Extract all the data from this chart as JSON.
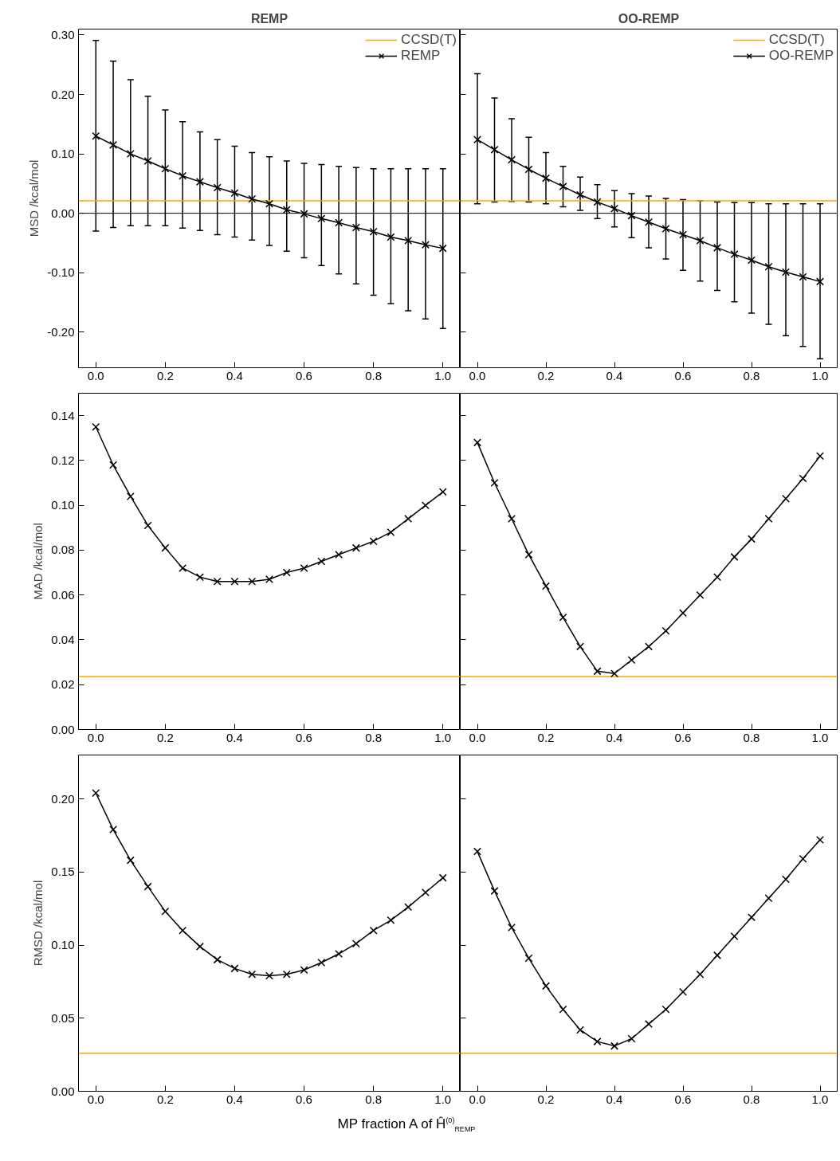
{
  "chart_data": [
    {
      "type": "line",
      "title": "REMP",
      "ylabel": "MSD /kcal/mol",
      "marker": "cross",
      "legend": "top right",
      "xlim": [
        -0.05,
        1.05
      ],
      "ylim": [
        -0.26,
        0.31
      ],
      "xticks": [
        {
          "value": 0,
          "label": "0.0"
        },
        {
          "value": 0.2,
          "label": "0.2"
        },
        {
          "value": 0.4,
          "label": "0.4"
        },
        {
          "value": 0.6,
          "label": "0.6"
        },
        {
          "value": 0.8,
          "label": "0.8"
        },
        {
          "value": 1,
          "label": "1.0"
        }
      ],
      "yticks": [
        {
          "value": -0.2,
          "label": "-0.20"
        },
        {
          "value": -0.1,
          "label": "-0.10"
        },
        {
          "value": 0,
          "label": "0.00"
        },
        {
          "value": 0.1,
          "label": "0.10"
        },
        {
          "value": 0.2,
          "label": "0.20"
        },
        {
          "value": 0.3,
          "label": "0.30"
        }
      ],
      "ref_lines": [
        {
          "axis": "y",
          "value": 0,
          "label": null,
          "color": "#000000"
        }
      ],
      "series": [
        {
          "name": "CCSD(T)",
          "color": "#ffa500",
          "marker": "none",
          "x": [
            -0.05,
            1.05
          ],
          "values": [
            0.021,
            0.021
          ]
        },
        {
          "name": "REMP",
          "color": "#000000",
          "x": [
            0,
            0.05,
            0.1,
            0.15,
            0.2,
            0.25,
            0.3,
            0.35,
            0.4,
            0.45,
            0.5,
            0.55,
            0.6,
            0.65,
            0.7,
            0.75,
            0.8,
            0.85,
            0.9,
            0.95,
            1.0
          ],
          "values": [
            0.13,
            0.115,
            0.1,
            0.088,
            0.075,
            0.063,
            0.053,
            0.043,
            0.034,
            0.024,
            0.016,
            0.006,
            -0.001,
            -0.009,
            -0.016,
            -0.024,
            -0.031,
            -0.04,
            -0.046,
            -0.053,
            -0.059
          ],
          "errors": [
            [
              -0.03,
              0.291
            ],
            [
              -0.024,
              0.256
            ],
            [
              -0.021,
              0.225
            ],
            [
              -0.021,
              0.197
            ],
            [
              -0.021,
              0.174
            ],
            [
              -0.025,
              0.154
            ],
            [
              -0.029,
              0.137
            ],
            [
              -0.036,
              0.124
            ],
            [
              -0.04,
              0.113
            ],
            [
              -0.045,
              0.102
            ],
            [
              -0.054,
              0.095
            ],
            [
              -0.064,
              0.088
            ],
            [
              -0.075,
              0.084
            ],
            [
              -0.088,
              0.082
            ],
            [
              -0.102,
              0.079
            ],
            [
              -0.119,
              0.077
            ],
            [
              -0.138,
              0.075
            ],
            [
              -0.152,
              0.075
            ],
            [
              -0.164,
              0.075
            ],
            [
              -0.178,
              0.075
            ],
            [
              -0.194,
              0.075
            ]
          ]
        }
      ]
    },
    {
      "type": "line",
      "title": "OO-REMP",
      "marker": "cross",
      "legend": "top right",
      "tick_labels": "x",
      "xlim": [
        -0.05,
        1.05
      ],
      "ylim": [
        -0.26,
        0.31
      ],
      "xticks": [
        {
          "value": 0,
          "label": "0.0"
        },
        {
          "value": 0.2,
          "label": "0.2"
        },
        {
          "value": 0.4,
          "label": "0.4"
        },
        {
          "value": 0.6,
          "label": "0.6"
        },
        {
          "value": 0.8,
          "label": "0.8"
        },
        {
          "value": 1,
          "label": "1.0"
        }
      ],
      "yticks": [
        {
          "value": -0.2,
          "label": null
        },
        {
          "value": -0.1,
          "label": null
        },
        {
          "value": 0,
          "label": null
        },
        {
          "value": 0.1,
          "label": null
        },
        {
          "value": 0.2,
          "label": null
        },
        {
          "value": 0.3,
          "label": null
        }
      ],
      "ref_lines": [
        {
          "axis": "y",
          "value": 0,
          "label": null,
          "color": "#000000"
        }
      ],
      "series": [
        {
          "name": "CCSD(T)",
          "color": "#ffa500",
          "marker": "none",
          "x": [
            -0.05,
            1.05
          ],
          "values": [
            0.021,
            0.021
          ]
        },
        {
          "name": "OO-REMP",
          "color": "#000000",
          "x": [
            0,
            0.05,
            0.1,
            0.15,
            0.2,
            0.25,
            0.3,
            0.35,
            0.4,
            0.45,
            0.5,
            0.55,
            0.6,
            0.65,
            0.7,
            0.75,
            0.8,
            0.85,
            0.9,
            0.95,
            1.0
          ],
          "values": [
            0.124,
            0.107,
            0.09,
            0.074,
            0.059,
            0.045,
            0.031,
            0.019,
            0.008,
            -0.004,
            -0.015,
            -0.026,
            -0.036,
            -0.046,
            -0.058,
            -0.069,
            -0.079,
            -0.09,
            -0.099,
            -0.107,
            -0.115
          ],
          "errors": [
            [
              0.016,
              0.235
            ],
            [
              0.019,
              0.194
            ],
            [
              0.02,
              0.159
            ],
            [
              0.019,
              0.128
            ],
            [
              0.016,
              0.102
            ],
            [
              0.011,
              0.079
            ],
            [
              0.005,
              0.061
            ],
            [
              -0.009,
              0.048
            ],
            [
              -0.023,
              0.038
            ],
            [
              -0.041,
              0.033
            ],
            [
              -0.058,
              0.029
            ],
            [
              -0.077,
              0.025
            ],
            [
              -0.096,
              0.023
            ],
            [
              -0.114,
              0.021
            ],
            [
              -0.13,
              0.019
            ],
            [
              -0.149,
              0.018
            ],
            [
              -0.168,
              0.018
            ],
            [
              -0.187,
              0.016
            ],
            [
              -0.206,
              0.016
            ],
            [
              -0.224,
              0.016
            ],
            [
              -0.245,
              0.016
            ]
          ]
        }
      ]
    },
    {
      "type": "line",
      "ylabel": "MAD /kcal/mol",
      "marker": "cross",
      "xlim": [
        -0.05,
        1.05
      ],
      "ylim": [
        0,
        0.15
      ],
      "xticks": [
        {
          "value": 0,
          "label": "0.0"
        },
        {
          "value": 0.2,
          "label": "0.2"
        },
        {
          "value": 0.4,
          "label": "0.4"
        },
        {
          "value": 0.6,
          "label": "0.6"
        },
        {
          "value": 0.8,
          "label": "0.8"
        },
        {
          "value": 1,
          "label": "1.0"
        }
      ],
      "yticks": [
        {
          "value": 0,
          "label": "0.00"
        },
        {
          "value": 0.02,
          "label": "0.02"
        },
        {
          "value": 0.04,
          "label": "0.04"
        },
        {
          "value": 0.06,
          "label": "0.06"
        },
        {
          "value": 0.08,
          "label": "0.08"
        },
        {
          "value": 0.1,
          "label": "0.10"
        },
        {
          "value": 0.12,
          "label": "0.12"
        },
        {
          "value": 0.14,
          "label": "0.14"
        }
      ],
      "series": [
        {
          "color": "#ffa500",
          "marker": "none",
          "x": [
            -0.05,
            1.05
          ],
          "values": [
            0.0236,
            0.0236
          ]
        },
        {
          "color": "#000000",
          "x": [
            0,
            0.05,
            0.1,
            0.15,
            0.2,
            0.25,
            0.3,
            0.35,
            0.4,
            0.45,
            0.5,
            0.55,
            0.6,
            0.65,
            0.7,
            0.75,
            0.8,
            0.85,
            0.9,
            0.95,
            1.0
          ],
          "values": [
            0.135,
            0.118,
            0.104,
            0.091,
            0.081,
            0.072,
            0.068,
            0.066,
            0.066,
            0.066,
            0.067,
            0.07,
            0.072,
            0.075,
            0.078,
            0.081,
            0.084,
            0.088,
            0.094,
            0.1,
            0.106
          ]
        }
      ]
    },
    {
      "type": "line",
      "marker": "cross",
      "tick_labels": "x",
      "xlim": [
        -0.05,
        1.05
      ],
      "ylim": [
        0,
        0.15
      ],
      "xticks": [
        {
          "value": 0,
          "label": "0.0"
        },
        {
          "value": 0.2,
          "label": "0.2"
        },
        {
          "value": 0.4,
          "label": "0.4"
        },
        {
          "value": 0.6,
          "label": "0.6"
        },
        {
          "value": 0.8,
          "label": "0.8"
        },
        {
          "value": 1,
          "label": "1.0"
        }
      ],
      "yticks": [
        {
          "value": 0,
          "label": null
        },
        {
          "value": 0.02,
          "label": null
        },
        {
          "value": 0.04,
          "label": null
        },
        {
          "value": 0.06,
          "label": null
        },
        {
          "value": 0.08,
          "label": null
        },
        {
          "value": 0.1,
          "label": null
        },
        {
          "value": 0.12,
          "label": null
        },
        {
          "value": 0.14,
          "label": null
        }
      ],
      "series": [
        {
          "color": "#ffa500",
          "marker": "none",
          "x": [
            -0.05,
            1.05
          ],
          "values": [
            0.0236,
            0.0236
          ]
        },
        {
          "color": "#000000",
          "x": [
            0,
            0.05,
            0.1,
            0.15,
            0.2,
            0.25,
            0.3,
            0.35,
            0.4,
            0.45,
            0.5,
            0.55,
            0.6,
            0.65,
            0.7,
            0.75,
            0.8,
            0.85,
            0.9,
            0.95,
            1.0
          ],
          "values": [
            0.128,
            0.11,
            0.094,
            0.078,
            0.064,
            0.05,
            0.037,
            0.026,
            0.025,
            0.031,
            0.037,
            0.044,
            0.052,
            0.06,
            0.068,
            0.077,
            0.085,
            0.094,
            0.103,
            0.112,
            0.122
          ]
        }
      ]
    },
    {
      "type": "line",
      "ylabel": "RMSD /kcal/mol",
      "xlabel": "MP fraction A of Ĥ$^{(0)}$$_{REMP}$",
      "marker": "cross",
      "xlim": [
        -0.05,
        1.05
      ],
      "ylim": [
        0,
        0.23
      ],
      "xticks": [
        {
          "value": 0,
          "label": "0.0"
        },
        {
          "value": 0.2,
          "label": "0.2"
        },
        {
          "value": 0.4,
          "label": "0.4"
        },
        {
          "value": 0.6,
          "label": "0.6"
        },
        {
          "value": 0.8,
          "label": "0.8"
        },
        {
          "value": 1,
          "label": "1.0"
        }
      ],
      "yticks": [
        {
          "value": 0,
          "label": "0.00"
        },
        {
          "value": 0.05,
          "label": "0.05"
        },
        {
          "value": 0.1,
          "label": "0.10"
        },
        {
          "value": 0.15,
          "label": "0.15"
        },
        {
          "value": 0.2,
          "label": "0.20"
        }
      ],
      "series": [
        {
          "color": "#ffa500",
          "marker": "none",
          "x": [
            -0.05,
            1.05
          ],
          "values": [
            0.026,
            0.026
          ]
        },
        {
          "color": "#000000",
          "x": [
            0,
            0.05,
            0.1,
            0.15,
            0.2,
            0.25,
            0.3,
            0.35,
            0.4,
            0.45,
            0.5,
            0.55,
            0.6,
            0.65,
            0.7,
            0.75,
            0.8,
            0.85,
            0.9,
            0.95,
            1.0
          ],
          "values": [
            0.204,
            0.179,
            0.158,
            0.14,
            0.123,
            0.11,
            0.099,
            0.09,
            0.084,
            0.08,
            0.079,
            0.08,
            0.083,
            0.088,
            0.094,
            0.101,
            0.11,
            0.117,
            0.126,
            0.136,
            0.146
          ]
        }
      ]
    },
    {
      "type": "line",
      "marker": "cross",
      "tick_labels": "x",
      "xlim": [
        -0.05,
        1.05
      ],
      "ylim": [
        0,
        0.23
      ],
      "xticks": [
        {
          "value": 0,
          "label": "0.0"
        },
        {
          "value": 0.2,
          "label": "0.2"
        },
        {
          "value": 0.4,
          "label": "0.4"
        },
        {
          "value": 0.6,
          "label": "0.6"
        },
        {
          "value": 0.8,
          "label": "0.8"
        },
        {
          "value": 1,
          "label": "1.0"
        }
      ],
      "yticks": [
        {
          "value": 0,
          "label": null
        },
        {
          "value": 0.05,
          "label": null
        },
        {
          "value": 0.1,
          "label": null
        },
        {
          "value": 0.15,
          "label": null
        },
        {
          "value": 0.2,
          "label": null
        }
      ],
      "series": [
        {
          "color": "#ffa500",
          "marker": "none",
          "x": [
            -0.05,
            1.05
          ],
          "values": [
            0.026,
            0.026
          ]
        },
        {
          "color": "#000000",
          "x": [
            0,
            0.05,
            0.1,
            0.15,
            0.2,
            0.25,
            0.3,
            0.35,
            0.4,
            0.45,
            0.5,
            0.55,
            0.6,
            0.65,
            0.7,
            0.75,
            0.8,
            0.85,
            0.9,
            0.95,
            1.0
          ],
          "values": [
            0.164,
            0.137,
            0.112,
            0.091,
            0.072,
            0.056,
            0.042,
            0.034,
            0.031,
            0.036,
            0.046,
            0.056,
            0.068,
            0.08,
            0.093,
            0.106,
            0.119,
            0.132,
            0.145,
            0.159,
            0.172
          ]
        }
      ]
    }
  ]
}
